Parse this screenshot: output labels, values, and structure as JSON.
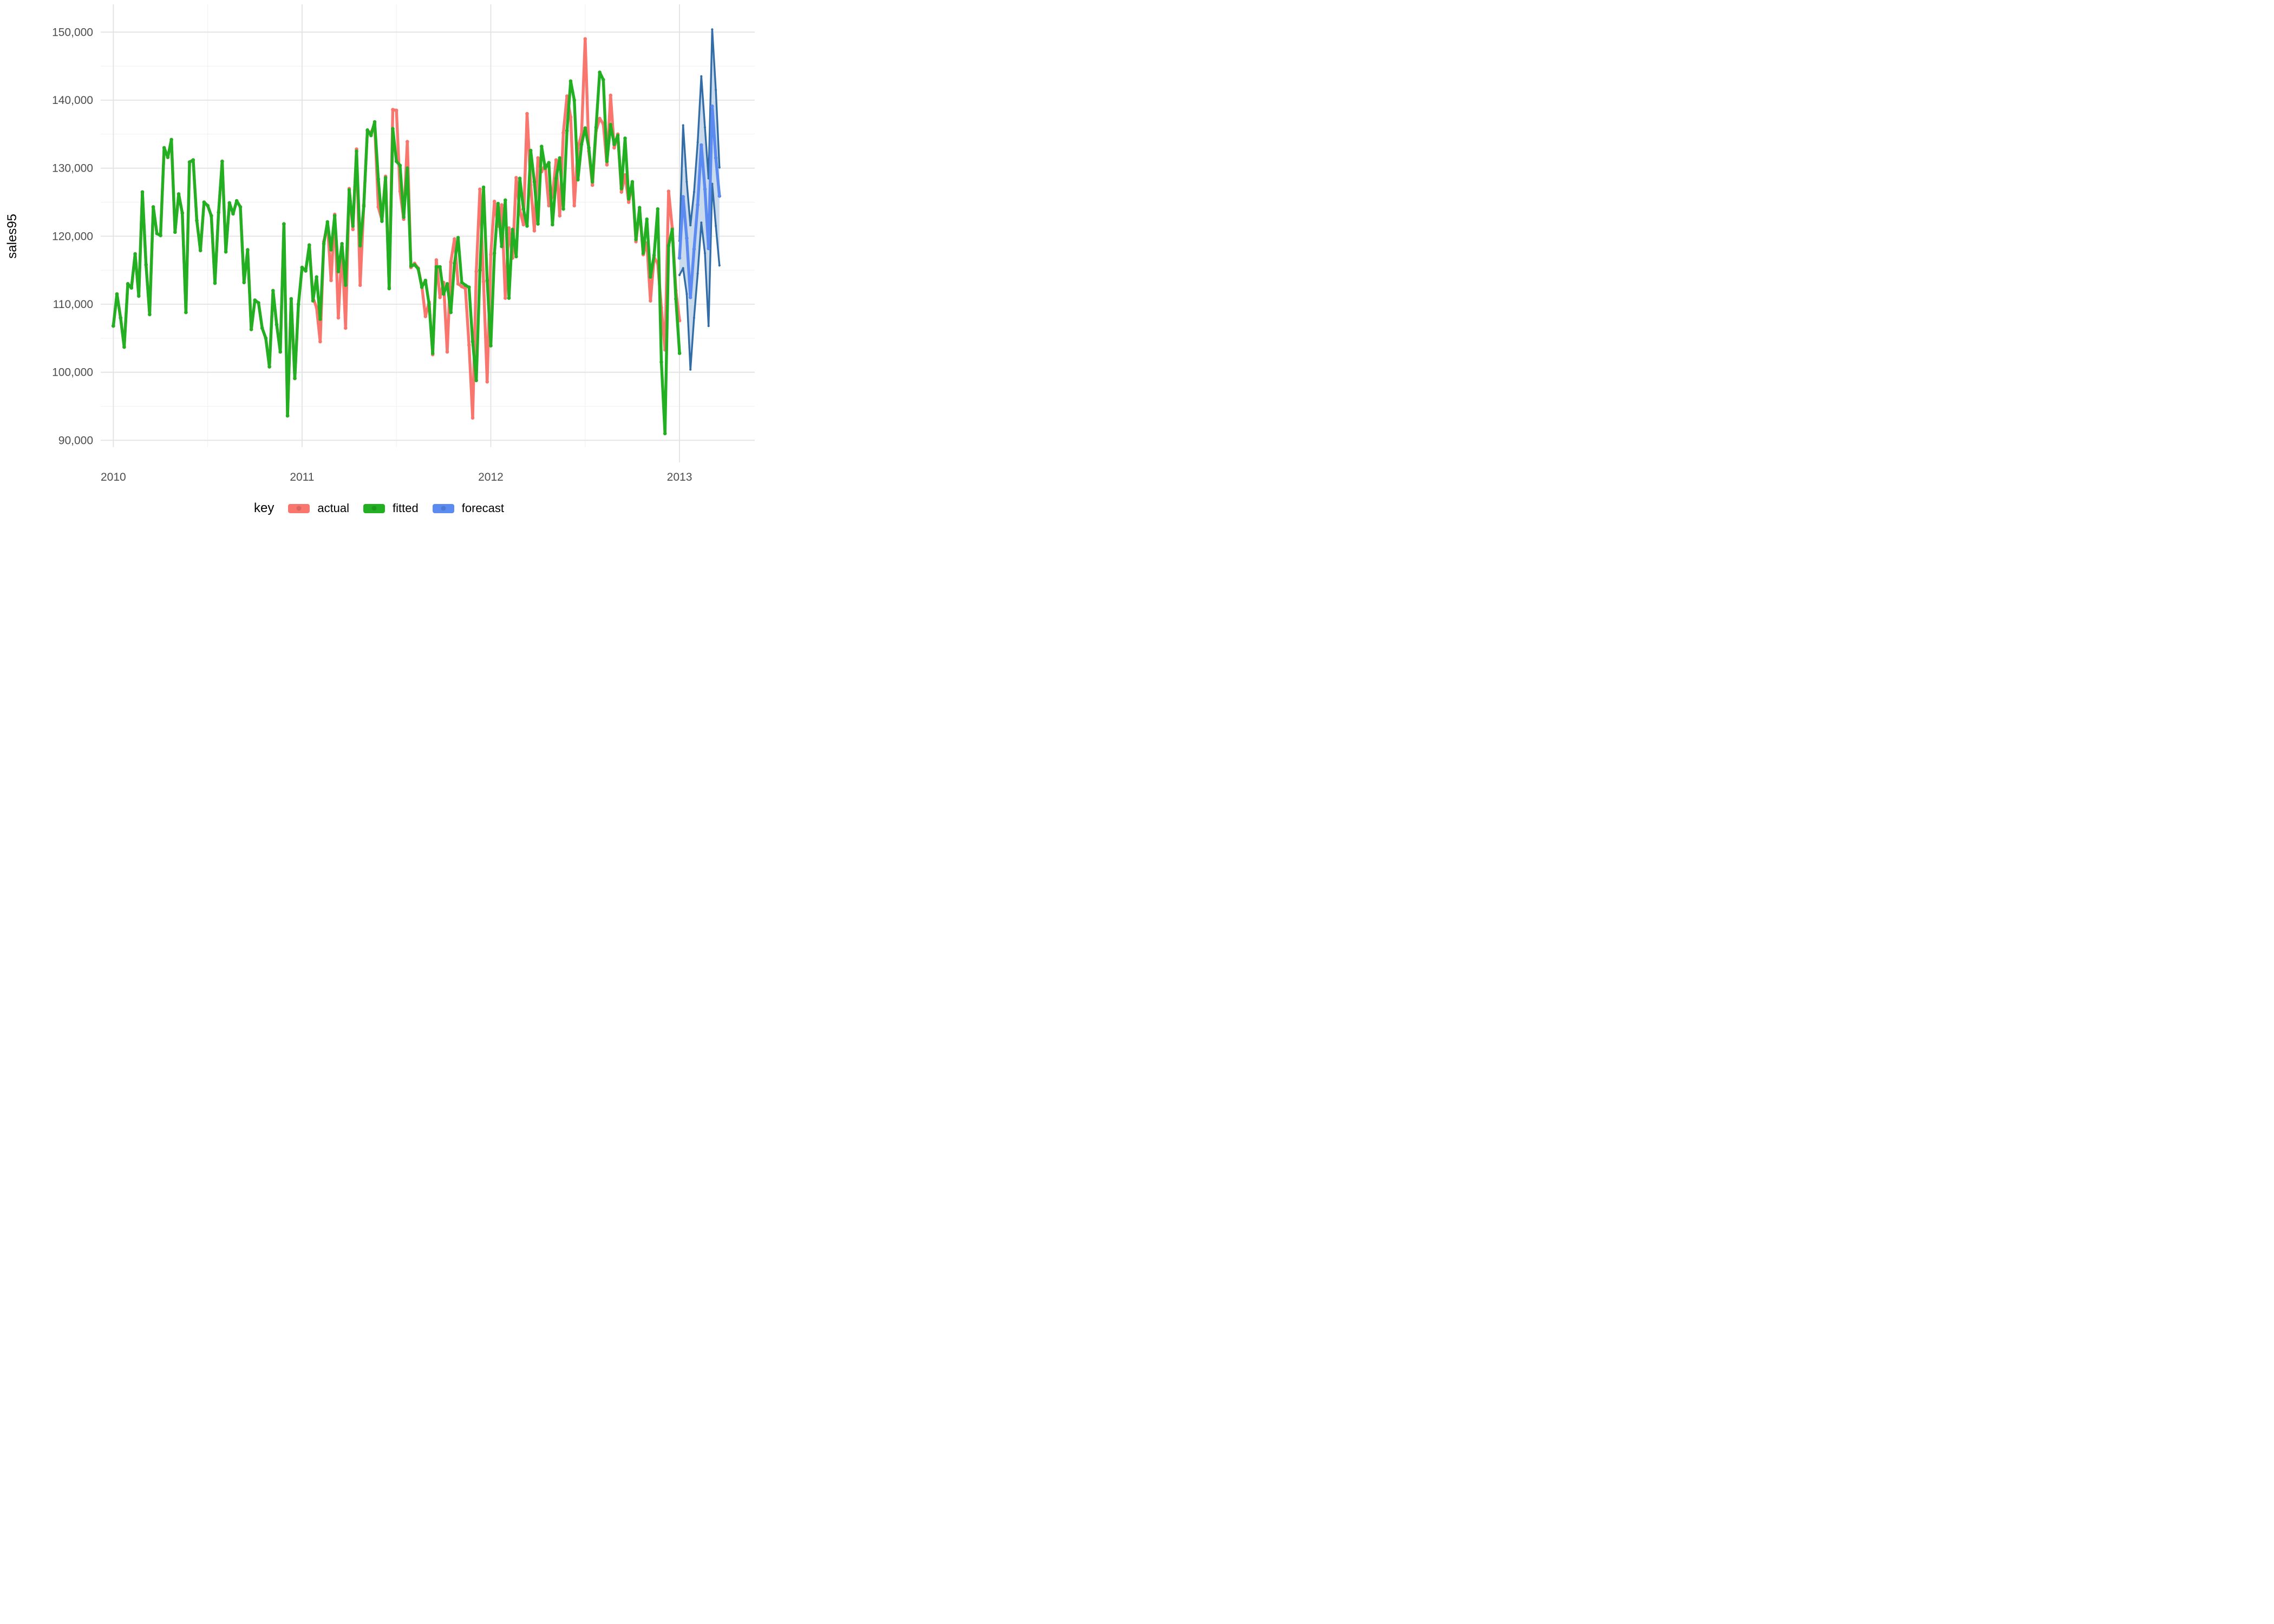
{
  "figure": {
    "y_axis_title": "sales95",
    "x_tick_labels": [
      "2010",
      "2011",
      "2012",
      "2013"
    ],
    "y_tick_labels": [
      "90,000",
      "100,000",
      "110,000",
      "120,000",
      "130,000",
      "140,000",
      "150,000"
    ]
  },
  "legend": {
    "title": "key",
    "entries": [
      {
        "label": "actual",
        "color": "#F8766D"
      },
      {
        "label": "fitted",
        "color": "#22B022"
      },
      {
        "label": "forecast",
        "color": "#5B8BF0"
      }
    ]
  },
  "colors": {
    "actual": "#F8766D",
    "fitted": "#22B022",
    "forecast": "#5B8BF0",
    "interval_edge": "#336DA8",
    "interval_fill": "#C9DAEC",
    "grid_major": "#E2E2E2",
    "grid_minor": "#F1F1F1",
    "tick_text": "#4D4D4D"
  },
  "chart_data": {
    "type": "line",
    "title": "",
    "xlabel": "",
    "ylabel": "sales95",
    "x_ticks": [
      2010,
      2011,
      2012,
      2013
    ],
    "x_minor_ticks": [
      2010.5,
      2011.5,
      2012.5
    ],
    "y_ticks": [
      90000,
      100000,
      110000,
      120000,
      130000,
      140000,
      150000
    ],
    "y_minor_ticks": [
      95000,
      105000,
      115000,
      125000,
      135000,
      145000
    ],
    "ylim": [
      89000,
      154000
    ],
    "xlim": [
      2009.93,
      2013.4
    ],
    "grid": true,
    "legend_position": "bottom",
    "frequency": "weekly",
    "series": [
      {
        "name": "fitted",
        "start": 2010.0,
        "step": 0.019231,
        "values": [
          106800,
          111500,
          108000,
          103700,
          113000,
          112400,
          117400,
          111200,
          126500,
          115800,
          108500,
          124300,
          120400,
          120100,
          133000,
          131600,
          134200,
          120600,
          126200,
          123400,
          108800,
          130900,
          131200,
          122300,
          117900,
          125000,
          124500,
          123000,
          113100,
          123500,
          131000,
          117700,
          124900,
          123300,
          125200,
          124300,
          113200,
          118000,
          106300,
          110600,
          110200,
          106500,
          105000,
          100800,
          112000,
          107000,
          103000,
          121800,
          93600,
          110800,
          99100,
          110000,
          115400,
          114900,
          118700,
          110500,
          114000,
          107800,
          118900,
          122100,
          118000,
          123000,
          114800,
          118900,
          112800,
          126800,
          121500,
          132500,
          118600,
          124400,
          135600,
          134800,
          136800,
          128400,
          122200,
          128600,
          112300,
          135800,
          131000,
          130400,
          122800,
          130000,
          115600,
          115800,
          115200,
          112500,
          113500,
          110000,
          102800,
          115500,
          115500,
          111500,
          113000,
          108800,
          116000,
          119800,
          113200,
          112800,
          112500,
          104500,
          98800,
          115000,
          127200,
          113500,
          103900,
          117500,
          124800,
          118500,
          125300,
          110900,
          121000,
          117000,
          128500,
          124000,
          121500,
          132600,
          128000,
          121800,
          133200,
          130000,
          130800,
          121700,
          128500,
          131500,
          124000,
          135500,
          142800,
          140000,
          128300,
          133500,
          135900,
          133000,
          128000,
          136000,
          144100,
          143000,
          131000,
          136400,
          133500,
          134800,
          127000,
          134400,
          125500,
          128000,
          119500,
          124200,
          117500,
          122500,
          114000,
          117200,
          124000,
          101500,
          91000,
          118600,
          121000,
          110800,
          102800
        ]
      },
      {
        "name": "actual",
        "start": 2010.0,
        "step": 0.019231,
        "values": [
          106800,
          111500,
          108000,
          103700,
          113000,
          112400,
          117400,
          111200,
          126500,
          115800,
          108500,
          124300,
          120400,
          120100,
          133000,
          131600,
          134200,
          120600,
          126200,
          123400,
          108800,
          130900,
          131200,
          122300,
          117900,
          125000,
          124500,
          123000,
          113100,
          123500,
          131000,
          117700,
          124900,
          123300,
          125200,
          124300,
          113200,
          118000,
          106300,
          110600,
          110200,
          106500,
          105000,
          100800,
          112000,
          107000,
          103000,
          121800,
          93600,
          110800,
          99100,
          110000,
          115400,
          114900,
          118700,
          111000,
          109500,
          104500,
          119200,
          121800,
          113500,
          123200,
          108000,
          118500,
          106500,
          127000,
          121000,
          132800,
          112800,
          124600,
          135500,
          135200,
          136500,
          124300,
          122400,
          128800,
          112500,
          138600,
          138500,
          126600,
          122500,
          133900,
          115400,
          116000,
          115300,
          112700,
          108200,
          110300,
          102600,
          116500,
          111000,
          113200,
          103000,
          116200,
          119600,
          113000,
          112600,
          112300,
          104000,
          93300,
          114800,
          126900,
          113300,
          98600,
          117300,
          125100,
          121500,
          124600,
          110900,
          121200,
          116800,
          128600,
          123800,
          121700,
          138000,
          127500,
          120800,
          131500,
          129500,
          130500,
          124500,
          126000,
          131200,
          123000,
          135200,
          140600,
          137500,
          124500,
          133000,
          135000,
          149000,
          132500,
          127500,
          135500,
          137300,
          136500,
          130500,
          140700,
          133000,
          135000,
          126500,
          129000,
          125000,
          127800,
          119200,
          123900,
          117300,
          119000,
          110500,
          116900,
          116000,
          109500,
          103300,
          126600,
          121200,
          112000,
          107600
        ]
      },
      {
        "name": "forecast",
        "start": 2013.0,
        "step": 0.019231,
        "values": [
          116800,
          125800,
          119700,
          111000,
          118100,
          124600,
          133400,
          126900,
          118200,
          139100,
          131500,
          125900
        ],
        "interval_lo": [
          114300,
          115300,
          111500,
          100400,
          108000,
          114500,
          122000,
          117500,
          106800,
          127700,
          121500,
          115700
        ],
        "interval_hi": [
          119300,
          136300,
          128000,
          121600,
          126500,
          133800,
          143500,
          136000,
          128500,
          150400,
          141500,
          130100
        ]
      }
    ]
  }
}
